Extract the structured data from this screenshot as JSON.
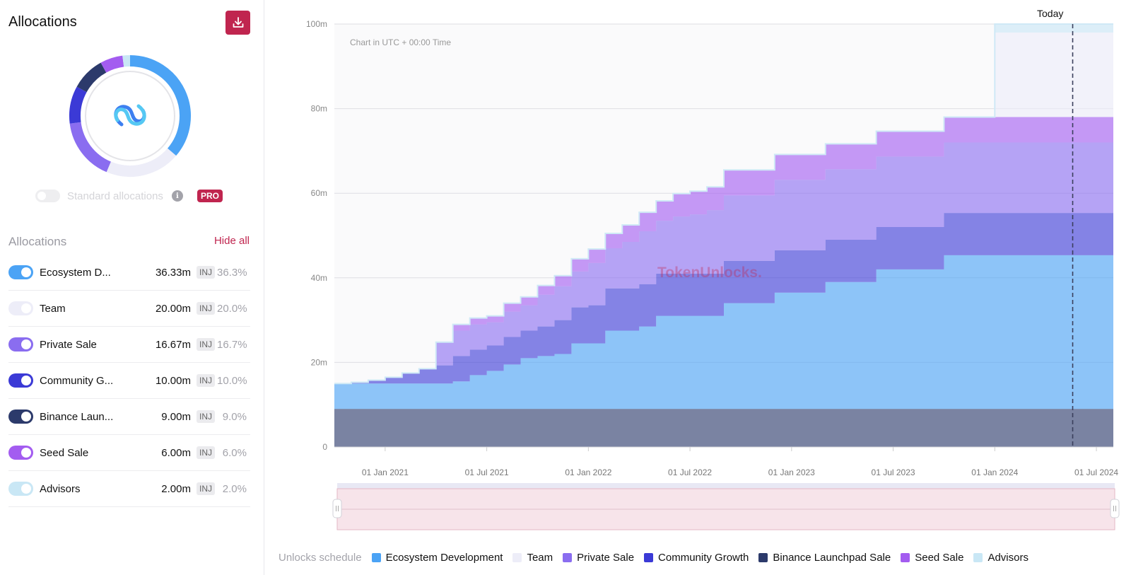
{
  "panel": {
    "title": "Allocations",
    "standard_allocations_label": "Standard allocations",
    "pro_badge": "PRO",
    "allocations_heading": "Allocations",
    "hide_all": "Hide all",
    "token": "INJ"
  },
  "allocations": [
    {
      "name": "Ecosystem D...",
      "amount": "36.33m",
      "pct": "36.3%",
      "color": "#4ba3f5",
      "enabled": true
    },
    {
      "name": "Team",
      "amount": "20.00m",
      "pct": "20.0%",
      "color": "#ededf8",
      "enabled": true
    },
    {
      "name": "Private Sale",
      "amount": "16.67m",
      "pct": "16.7%",
      "color": "#8a6df0",
      "enabled": true
    },
    {
      "name": "Community G...",
      "amount": "10.00m",
      "pct": "10.0%",
      "color": "#3b3ad6",
      "enabled": true
    },
    {
      "name": "Binance Laun...",
      "amount": "9.00m",
      "pct": "9.0%",
      "color": "#2c3a6b",
      "enabled": true
    },
    {
      "name": "Seed Sale",
      "amount": "6.00m",
      "pct": "6.0%",
      "color": "#a35cf0",
      "enabled": true
    },
    {
      "name": "Advisors",
      "amount": "2.00m",
      "pct": "2.0%",
      "color": "#c9e7f5",
      "enabled": true
    }
  ],
  "chart": {
    "note": "Chart in UTC + 00:00 Time",
    "today_label": "Today",
    "watermark": "TokenUnlocks.",
    "legend_title": "Unlocks schedule"
  },
  "chart_data": {
    "type": "area",
    "stacked": true,
    "step": true,
    "x": [
      "2020-10",
      "2020-11",
      "2020-12",
      "2021-01",
      "2021-02",
      "2021-03",
      "2021-04",
      "2021-05",
      "2021-06",
      "2021-07",
      "2021-08",
      "2021-09",
      "2021-10",
      "2021-11",
      "2021-12",
      "2022-01",
      "2022-02",
      "2022-03",
      "2022-04",
      "2022-05",
      "2022-06",
      "2022-07",
      "2022-08",
      "2022-09",
      "2022-10",
      "2022-11",
      "2022-12",
      "2023-01",
      "2023-02",
      "2023-03",
      "2023-04",
      "2023-05",
      "2023-06",
      "2023-07",
      "2023-08",
      "2023-09",
      "2023-10",
      "2023-11",
      "2023-12",
      "2024-01",
      "2024-02",
      "2024-03",
      "2024-04",
      "2024-05",
      "2024-06",
      "2024-07"
    ],
    "x_ticks": [
      "01 Jan 2021",
      "01 Jul 2021",
      "01 Jan 2022",
      "01 Jul 2022",
      "01 Jan 2023",
      "01 Jul 2023",
      "01 Jan 2024",
      "01 Jul 2024"
    ],
    "y_ticks": [
      "0",
      "20m",
      "40m",
      "60m",
      "80m",
      "100m"
    ],
    "ylim": [
      0,
      100
    ],
    "today": "2024-05",
    "series": [
      {
        "name": "Binance Launchpad Sale",
        "color": "#2c3a6b",
        "values": [
          9,
          9,
          9,
          9,
          9,
          9,
          9,
          9,
          9,
          9,
          9,
          9,
          9,
          9,
          9,
          9,
          9,
          9,
          9,
          9,
          9,
          9,
          9,
          9,
          9,
          9,
          9,
          9,
          9,
          9,
          9,
          9,
          9,
          9,
          9,
          9,
          9,
          9,
          9,
          9,
          9,
          9,
          9,
          9,
          9,
          9
        ]
      },
      {
        "name": "Ecosystem Development",
        "color": "#4ba3f5",
        "values": [
          6,
          6,
          6,
          6,
          6,
          6,
          6,
          6.5,
          8,
          9,
          10.5,
          12,
          12.5,
          13,
          15.5,
          15.5,
          18.5,
          18.5,
          19.5,
          22,
          22,
          22,
          22,
          25,
          25,
          25,
          27.5,
          27.5,
          27.5,
          30,
          30,
          30,
          33,
          33,
          33,
          33,
          36.33,
          36.33,
          36.33,
          36.33,
          36.33,
          36.33,
          36.33,
          36.33,
          36.33,
          36.33
        ]
      },
      {
        "name": "Community Growth",
        "color": "#3b3ad6",
        "values": [
          0,
          0.3,
          0.8,
          1.5,
          2.5,
          3.5,
          4.3,
          6,
          6,
          6,
          6.5,
          6.5,
          7,
          8,
          8.5,
          9,
          10,
          10,
          10,
          10,
          10,
          10,
          10,
          10,
          10,
          10,
          10,
          10,
          10,
          10,
          10,
          10,
          10,
          10,
          10,
          10,
          10,
          10,
          10,
          10,
          10,
          10,
          10,
          10,
          10,
          10
        ]
      },
      {
        "name": "Private Sale",
        "color": "#8a6df0",
        "values": [
          0,
          0,
          0,
          0,
          0,
          0,
          5.5,
          6,
          6,
          5.5,
          6,
          6,
          7.5,
          8,
          8.5,
          10,
          9.5,
          11,
          12.5,
          12.5,
          13.5,
          14,
          15,
          15.5,
          15.5,
          15.5,
          16.67,
          16.67,
          16.67,
          16.67,
          16.67,
          16.67,
          16.67,
          16.67,
          16.67,
          16.67,
          16.67,
          16.67,
          16.67,
          16.67,
          16.67,
          16.67,
          16.67,
          16.67,
          16.67,
          16.67
        ]
      },
      {
        "name": "Seed Sale",
        "color": "#a35cf0",
        "values": [
          0,
          0,
          0,
          0,
          0,
          0,
          0,
          1.5,
          1.5,
          1.5,
          2,
          2,
          2.2,
          2.5,
          3,
          3.3,
          3.5,
          4,
          4.5,
          4.7,
          5.4,
          5.5,
          5.5,
          6,
          6,
          6,
          6,
          6,
          6,
          6,
          6,
          6,
          6,
          6,
          6,
          6,
          6,
          6,
          6,
          6,
          6,
          6,
          6,
          6,
          6,
          6
        ]
      },
      {
        "name": "Team",
        "color": "#ededf8",
        "values": [
          0,
          0,
          0,
          0,
          0,
          0,
          0,
          0,
          0,
          0,
          0,
          0,
          0,
          0,
          0,
          0,
          0,
          0,
          0,
          0,
          0,
          0,
          0,
          0,
          0,
          0,
          0,
          0,
          0,
          0,
          0,
          0,
          0,
          0,
          0,
          0,
          0,
          0,
          0,
          20,
          20,
          20,
          20,
          20,
          20,
          20
        ]
      },
      {
        "name": "Advisors",
        "color": "#c9e7f5",
        "values": [
          0,
          0,
          0,
          0,
          0,
          0,
          0,
          0,
          0,
          0,
          0,
          0,
          0,
          0,
          0,
          0,
          0,
          0,
          0,
          0,
          0,
          0,
          0,
          0,
          0,
          0,
          0,
          0,
          0,
          0,
          0,
          0,
          0,
          0,
          0,
          0,
          0,
          0,
          0,
          2,
          2,
          2,
          2,
          2,
          2,
          2
        ]
      }
    ],
    "legend_position": "bottom"
  }
}
